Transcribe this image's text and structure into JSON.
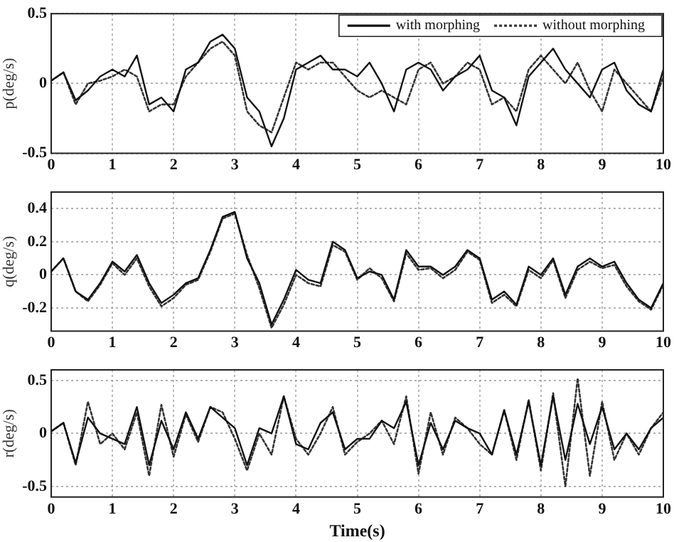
{
  "chart_data": [
    {
      "type": "line",
      "ylabel": "p(deg/s)",
      "legend": "top right",
      "grid": true,
      "marker": "none",
      "x": [
        0,
        0.2,
        0.4,
        0.6,
        0.8,
        1,
        1.2,
        1.4,
        1.6,
        1.8,
        2,
        2.2,
        2.4,
        2.6,
        2.8,
        3,
        3.2,
        3.4,
        3.6,
        3.8,
        4,
        4.2,
        4.4,
        4.6,
        4.8,
        5,
        5.2,
        5.4,
        5.6,
        5.8,
        6,
        6.2,
        6.4,
        6.6,
        6.8,
        7,
        7.2,
        7.4,
        7.6,
        7.8,
        8,
        8.2,
        8.4,
        8.6,
        8.8,
        9,
        9.2,
        9.4,
        9.6,
        9.8,
        10
      ],
      "xlim": [
        0,
        10
      ],
      "xticks": [
        0,
        1,
        2,
        3,
        4,
        5,
        6,
        7,
        8,
        9,
        10
      ],
      "ylim": [
        -0.5,
        0.5
      ],
      "yticks": [
        -0.5,
        0,
        0.5
      ],
      "series": [
        {
          "name": "with morphing",
          "color": "#111111",
          "line_style": "solid",
          "values": [
            0.02,
            0.08,
            -0.12,
            -0.05,
            0.05,
            0.1,
            0.05,
            0.2,
            -0.15,
            -0.1,
            -0.2,
            0.1,
            0.15,
            0.3,
            0.35,
            0.25,
            -0.1,
            -0.2,
            -0.45,
            -0.25,
            0.1,
            0.15,
            0.2,
            0.1,
            0.1,
            0.05,
            0.15,
            0,
            -0.2,
            0.1,
            0.15,
            0.1,
            -0.05,
            0.05,
            0.1,
            0.2,
            -0.05,
            -0.1,
            -0.3,
            0.05,
            0.15,
            0.25,
            0.1,
            0,
            -0.1,
            0.1,
            0.15,
            -0.05,
            -0.15,
            -0.2,
            0.1
          ]
        },
        {
          "name": "without morphing",
          "color": "#333333",
          "line_style": "dotted",
          "values": [
            0.02,
            0.08,
            -0.15,
            0,
            0.02,
            0.05,
            0.1,
            0.05,
            -0.2,
            -0.15,
            -0.15,
            0.05,
            0.15,
            0.25,
            0.3,
            0.2,
            -0.2,
            -0.3,
            -0.35,
            -0.1,
            0.15,
            0.1,
            0.15,
            0.15,
            0.05,
            -0.05,
            -0.1,
            -0.05,
            -0.1,
            -0.15,
            0.1,
            0.15,
            0,
            0.05,
            0.15,
            0.1,
            -0.15,
            -0.1,
            -0.2,
            0.1,
            0.2,
            0.1,
            0,
            0.15,
            -0.05,
            -0.2,
            0.1,
            0,
            -0.1,
            -0.2,
            0.05
          ]
        }
      ]
    },
    {
      "type": "line",
      "ylabel": "q(deg/s)",
      "grid": true,
      "marker": "none",
      "x": [
        0,
        0.2,
        0.4,
        0.6,
        0.8,
        1,
        1.2,
        1.4,
        1.6,
        1.8,
        2,
        2.2,
        2.4,
        2.6,
        2.8,
        3,
        3.2,
        3.4,
        3.6,
        3.8,
        4,
        4.2,
        4.4,
        4.6,
        4.8,
        5,
        5.2,
        5.4,
        5.6,
        5.8,
        6,
        6.2,
        6.4,
        6.6,
        6.8,
        7,
        7.2,
        7.4,
        7.6,
        7.8,
        8,
        8.2,
        8.4,
        8.6,
        8.8,
        9,
        9.2,
        9.4,
        9.6,
        9.8,
        10
      ],
      "xlim": [
        0,
        10
      ],
      "xticks": [
        0,
        1,
        2,
        3,
        4,
        5,
        6,
        7,
        8,
        9,
        10
      ],
      "ylim": [
        -0.34,
        0.5
      ],
      "yticks": [
        -0.2,
        0,
        0.2,
        0.4
      ],
      "series": [
        {
          "color": "#111111",
          "line_style": "solid",
          "values": [
            0.02,
            0.1,
            -0.1,
            -0.15,
            -0.05,
            0.08,
            0.02,
            0.12,
            -0.05,
            -0.17,
            -0.12,
            -0.05,
            -0.02,
            0.15,
            0.35,
            0.38,
            0.1,
            -0.05,
            -0.3,
            -0.15,
            0.03,
            -0.03,
            -0.05,
            0.2,
            0.15,
            -0.02,
            0.02,
            0,
            -0.15,
            0.15,
            0.05,
            0.05,
            0,
            0.05,
            0.15,
            0.1,
            -0.15,
            -0.1,
            -0.18,
            0.05,
            0,
            0.1,
            -0.12,
            0.05,
            0.1,
            0.05,
            0.08,
            -0.05,
            -0.15,
            -0.2,
            -0.05
          ]
        },
        {
          "color": "#333333",
          "line_style": "dotted",
          "values": [
            0.02,
            0.1,
            -0.1,
            -0.16,
            -0.06,
            0.07,
            0,
            0.1,
            -0.07,
            -0.19,
            -0.14,
            -0.06,
            -0.03,
            0.14,
            0.34,
            0.37,
            0.12,
            -0.08,
            -0.32,
            -0.18,
            0,
            -0.05,
            -0.07,
            0.18,
            0.14,
            -0.03,
            0.04,
            -0.02,
            -0.16,
            0.13,
            0.03,
            0.04,
            -0.02,
            0.03,
            0.14,
            0.09,
            -0.17,
            -0.12,
            -0.19,
            0.03,
            -0.02,
            0.09,
            -0.14,
            0.03,
            0.08,
            0.04,
            0.06,
            -0.07,
            -0.16,
            -0.21,
            -0.06
          ]
        }
      ]
    },
    {
      "type": "line",
      "ylabel": "r(deg/s)",
      "xlabel": "Time(s)",
      "grid": true,
      "marker": "none",
      "x": [
        0,
        0.2,
        0.4,
        0.6,
        0.8,
        1,
        1.2,
        1.4,
        1.6,
        1.8,
        2,
        2.2,
        2.4,
        2.6,
        2.8,
        3,
        3.2,
        3.4,
        3.6,
        3.8,
        4,
        4.2,
        4.4,
        4.6,
        4.8,
        5,
        5.2,
        5.4,
        5.6,
        5.8,
        6,
        6.2,
        6.4,
        6.6,
        6.8,
        7,
        7.2,
        7.4,
        7.6,
        7.8,
        8,
        8.2,
        8.4,
        8.6,
        8.8,
        9,
        9.2,
        9.4,
        9.6,
        9.8,
        10
      ],
      "xlim": [
        0,
        10
      ],
      "xticks": [
        0,
        1,
        2,
        3,
        4,
        5,
        6,
        7,
        8,
        9,
        10
      ],
      "ylim": [
        -0.6,
        0.6
      ],
      "yticks": [
        -0.5,
        0,
        0.5
      ],
      "series": [
        {
          "color": "#111111",
          "line_style": "solid",
          "values": [
            0.02,
            0.1,
            -0.28,
            0.15,
            0,
            -0.05,
            -0.1,
            0.25,
            -0.3,
            0.12,
            -0.15,
            0.2,
            -0.05,
            0.25,
            0.15,
            0.05,
            -0.3,
            0.05,
            0,
            0.35,
            -0.1,
            -0.15,
            0.1,
            0.2,
            -0.15,
            -0.05,
            -0.05,
            0.12,
            0.05,
            0.3,
            -0.3,
            0.1,
            -0.15,
            0.12,
            0.05,
            0,
            -0.2,
            0.22,
            -0.2,
            0.3,
            -0.3,
            0.35,
            -0.25,
            0.28,
            -0.1,
            0.25,
            -0.15,
            0,
            -0.15,
            0.05,
            0.15
          ]
        },
        {
          "color": "#333333",
          "line_style": "dotted",
          "values": [
            0.02,
            0.1,
            -0.3,
            0.3,
            -0.1,
            0,
            -0.15,
            0.2,
            -0.4,
            0.27,
            -0.22,
            0.18,
            -0.08,
            0.25,
            0.2,
            -0.05,
            -0.35,
            0,
            -0.2,
            0.35,
            -0.05,
            -0.2,
            0,
            0.25,
            -0.2,
            -0.08,
            0,
            0.12,
            -0.1,
            0.35,
            -0.38,
            0.2,
            -0.2,
            0.15,
            0.05,
            -0.1,
            -0.2,
            0.22,
            -0.25,
            0.32,
            -0.35,
            0.38,
            -0.5,
            0.52,
            -0.4,
            0.3,
            -0.25,
            0,
            -0.2,
            0.05,
            0.2
          ]
        }
      ]
    }
  ]
}
